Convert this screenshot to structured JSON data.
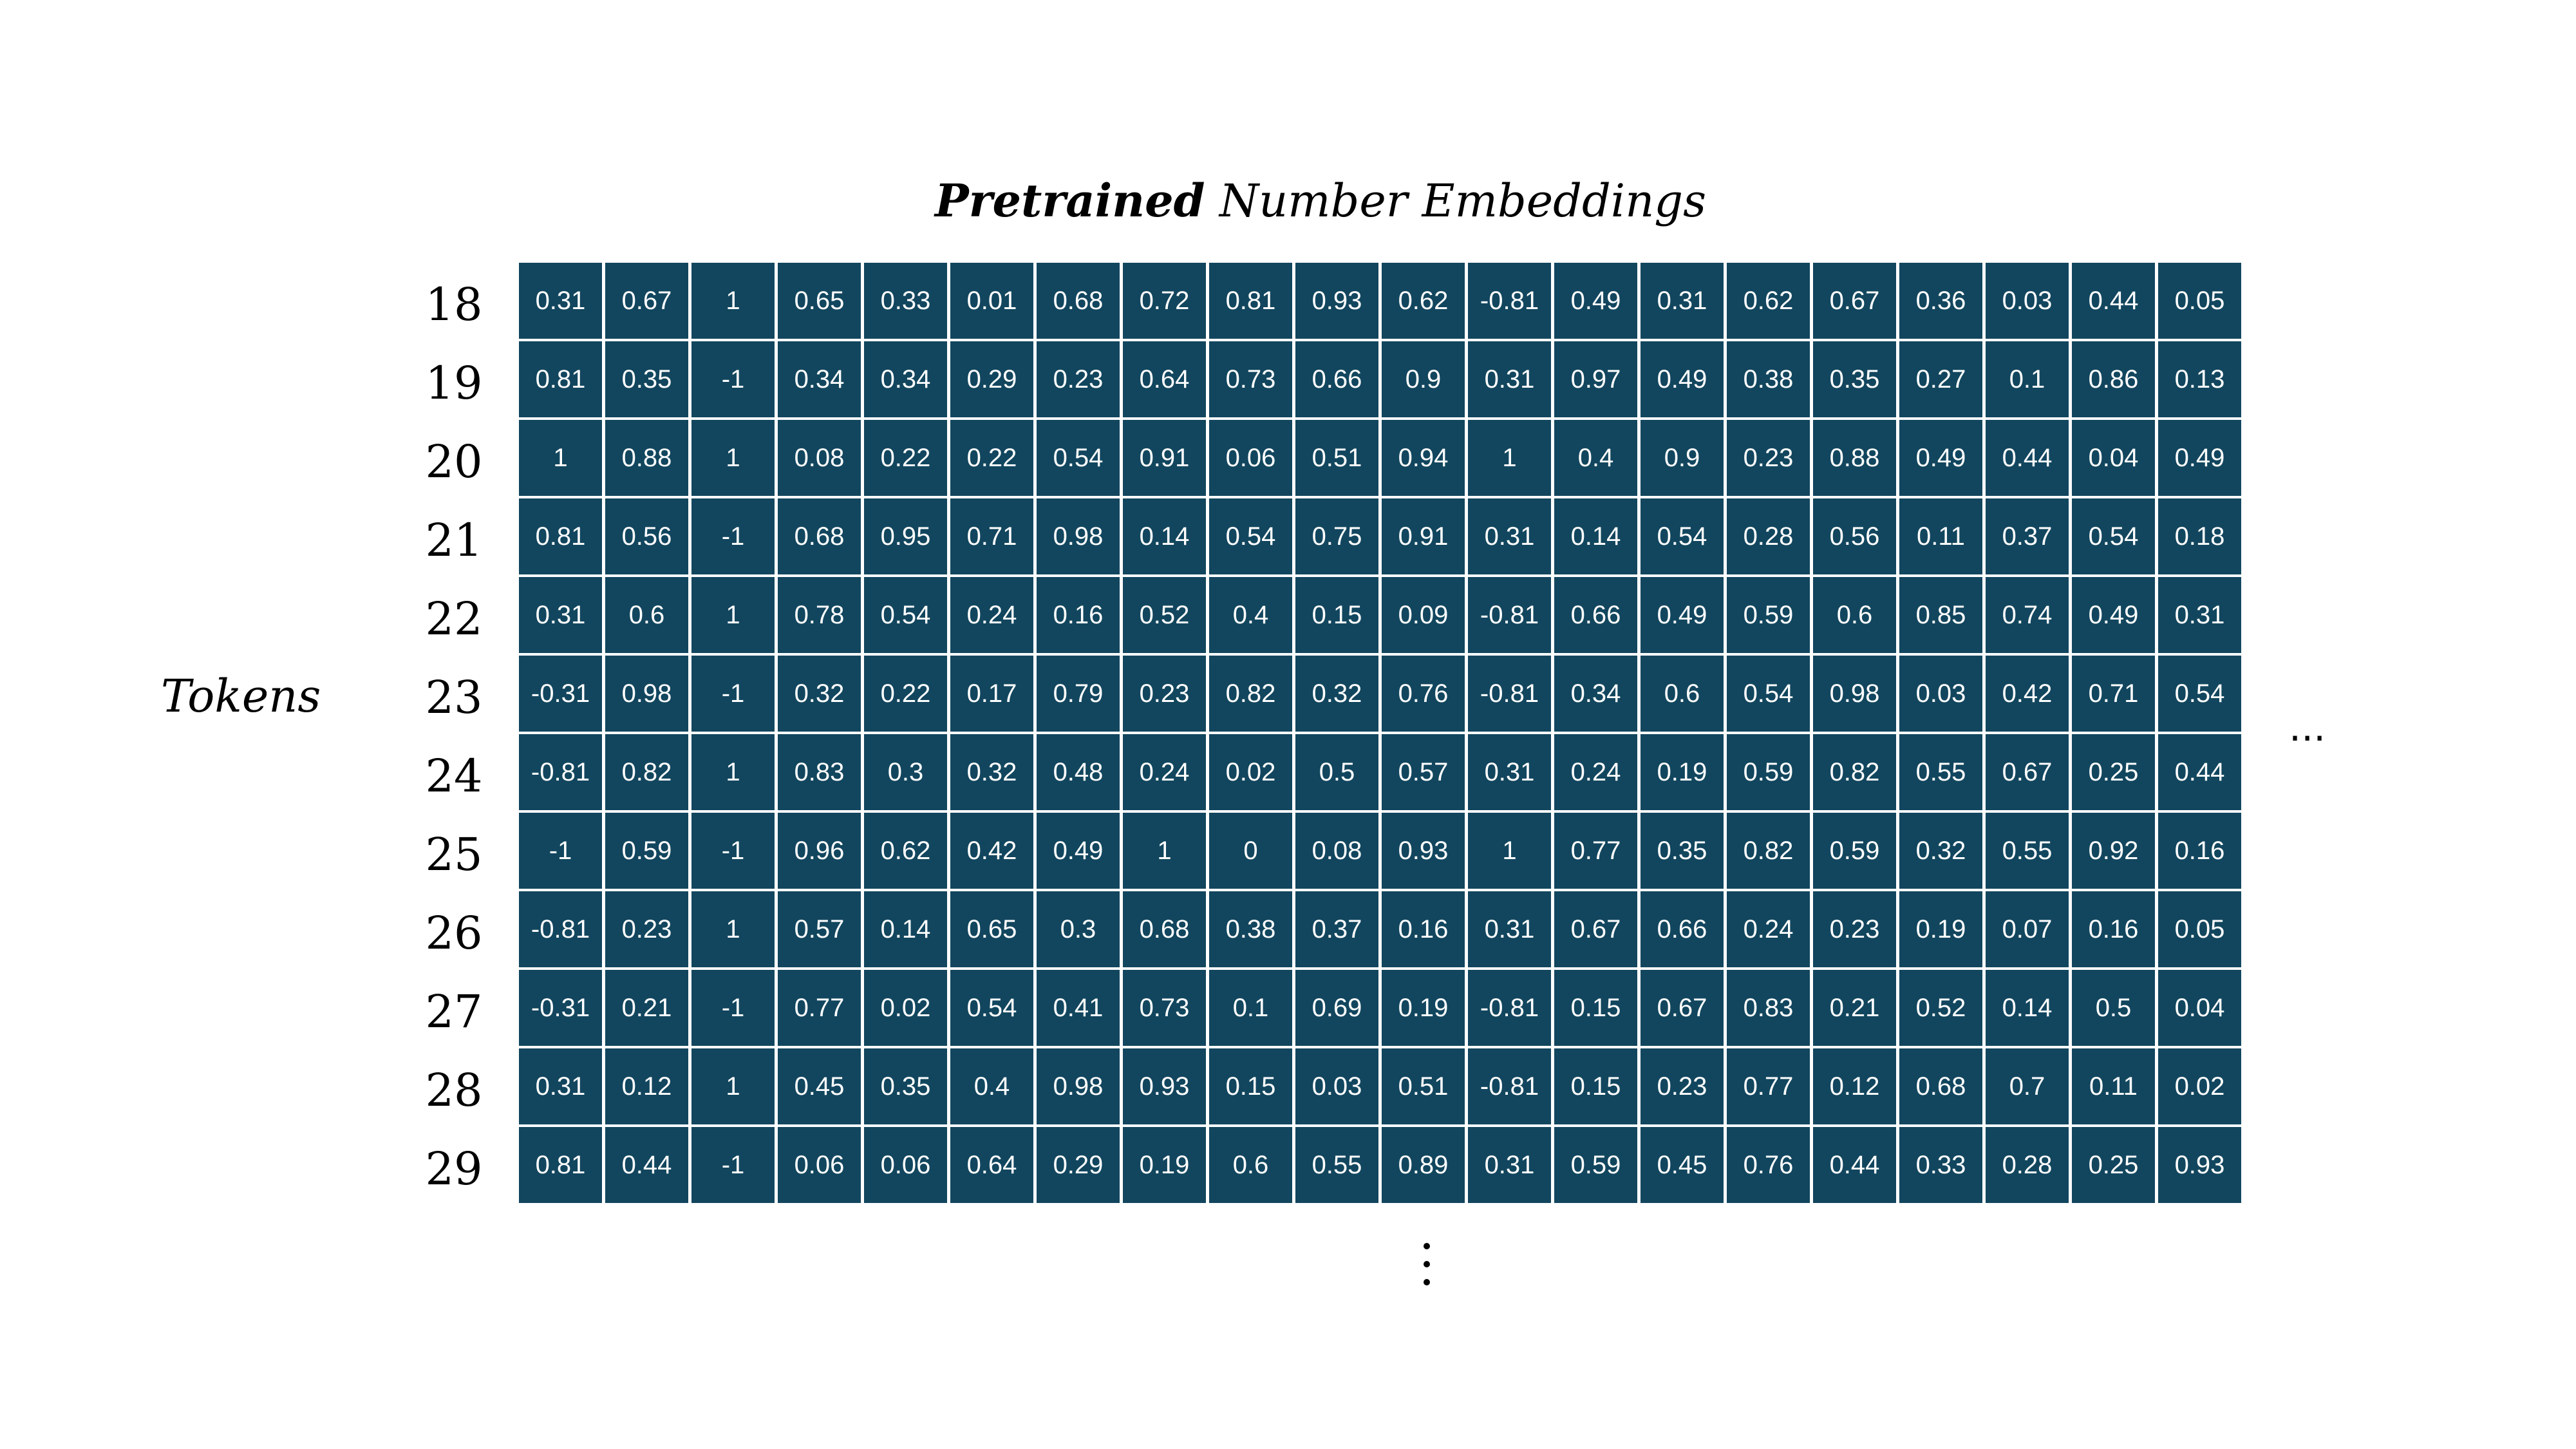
{
  "title": {
    "bold_part": "Pretrained",
    "rest": " Number Embeddings"
  },
  "y_axis_label": "Tokens",
  "row_labels": [
    "18",
    "19",
    "20",
    "21",
    "22",
    "23",
    "24",
    "25",
    "26",
    "27",
    "28",
    "29"
  ],
  "horizontal_ellipsis": "...",
  "vertical_ellipsis": "⋮",
  "colors": {
    "cell_background": "#12465e",
    "cell_text": "#ffffff",
    "background": "#ffffff"
  },
  "matrix": [
    [
      "0.31",
      "0.67",
      "1",
      "0.65",
      "0.33",
      "0.01",
      "0.68",
      "0.72",
      "0.81",
      "0.93",
      "0.62",
      "-0.81",
      "0.49",
      "0.31",
      "0.62",
      "0.67",
      "0.36",
      "0.03",
      "0.44",
      "0.05"
    ],
    [
      "0.81",
      "0.35",
      "-1",
      "0.34",
      "0.34",
      "0.29",
      "0.23",
      "0.64",
      "0.73",
      "0.66",
      "0.9",
      "0.31",
      "0.97",
      "0.49",
      "0.38",
      "0.35",
      "0.27",
      "0.1",
      "0.86",
      "0.13"
    ],
    [
      "1",
      "0.88",
      "1",
      "0.08",
      "0.22",
      "0.22",
      "0.54",
      "0.91",
      "0.06",
      "0.51",
      "0.94",
      "1",
      "0.4",
      "0.9",
      "0.23",
      "0.88",
      "0.49",
      "0.44",
      "0.04",
      "0.49"
    ],
    [
      "0.81",
      "0.56",
      "-1",
      "0.68",
      "0.95",
      "0.71",
      "0.98",
      "0.14",
      "0.54",
      "0.75",
      "0.91",
      "0.31",
      "0.14",
      "0.54",
      "0.28",
      "0.56",
      "0.11",
      "0.37",
      "0.54",
      "0.18"
    ],
    [
      "0.31",
      "0.6",
      "1",
      "0.78",
      "0.54",
      "0.24",
      "0.16",
      "0.52",
      "0.4",
      "0.15",
      "0.09",
      "-0.81",
      "0.66",
      "0.49",
      "0.59",
      "0.6",
      "0.85",
      "0.74",
      "0.49",
      "0.31"
    ],
    [
      "-0.31",
      "0.98",
      "-1",
      "0.32",
      "0.22",
      "0.17",
      "0.79",
      "0.23",
      "0.82",
      "0.32",
      "0.76",
      "-0.81",
      "0.34",
      "0.6",
      "0.54",
      "0.98",
      "0.03",
      "0.42",
      "0.71",
      "0.54"
    ],
    [
      "-0.81",
      "0.82",
      "1",
      "0.83",
      "0.3",
      "0.32",
      "0.48",
      "0.24",
      "0.02",
      "0.5",
      "0.57",
      "0.31",
      "0.24",
      "0.19",
      "0.59",
      "0.82",
      "0.55",
      "0.67",
      "0.25",
      "0.44"
    ],
    [
      "-1",
      "0.59",
      "-1",
      "0.96",
      "0.62",
      "0.42",
      "0.49",
      "1",
      "0",
      "0.08",
      "0.93",
      "1",
      "0.77",
      "0.35",
      "0.82",
      "0.59",
      "0.32",
      "0.55",
      "0.92",
      "0.16"
    ],
    [
      "-0.81",
      "0.23",
      "1",
      "0.57",
      "0.14",
      "0.65",
      "0.3",
      "0.68",
      "0.38",
      "0.37",
      "0.16",
      "0.31",
      "0.67",
      "0.66",
      "0.24",
      "0.23",
      "0.19",
      "0.07",
      "0.16",
      "0.05"
    ],
    [
      "-0.31",
      "0.21",
      "-1",
      "0.77",
      "0.02",
      "0.54",
      "0.41",
      "0.73",
      "0.1",
      "0.69",
      "0.19",
      "-0.81",
      "0.15",
      "0.67",
      "0.83",
      "0.21",
      "0.52",
      "0.14",
      "0.5",
      "0.04"
    ],
    [
      "0.31",
      "0.12",
      "1",
      "0.45",
      "0.35",
      "0.4",
      "0.98",
      "0.93",
      "0.15",
      "0.03",
      "0.51",
      "-0.81",
      "0.15",
      "0.23",
      "0.77",
      "0.12",
      "0.68",
      "0.7",
      "0.11",
      "0.02"
    ],
    [
      "0.81",
      "0.44",
      "-1",
      "0.06",
      "0.06",
      "0.64",
      "0.29",
      "0.19",
      "0.6",
      "0.55",
      "0.89",
      "0.31",
      "0.59",
      "0.45",
      "0.76",
      "0.44",
      "0.33",
      "0.28",
      "0.25",
      "0.93"
    ]
  ]
}
